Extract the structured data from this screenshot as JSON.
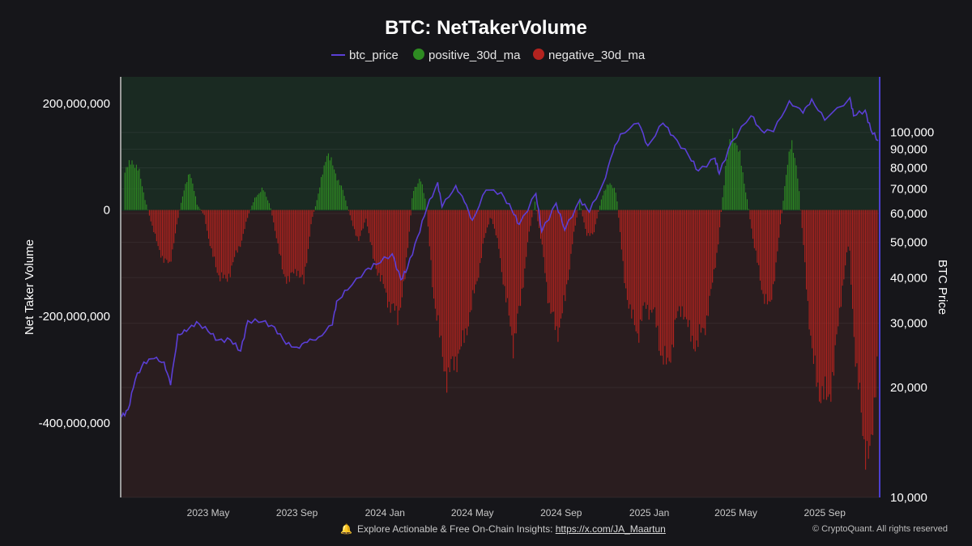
{
  "chart_data": {
    "type": "bar",
    "title": "BTC: NetTakerVolume",
    "legend": {
      "placement": "top-center",
      "entries": [
        {
          "name": "btc_price",
          "color": "#5b3fd6",
          "shape": "line"
        },
        {
          "name": "positive_30d_ma",
          "color": "#2e8b22",
          "shape": "dot"
        },
        {
          "name": "negative_30d_ma",
          "color": "#b3231f",
          "shape": "dot"
        }
      ]
    },
    "left_axis": {
      "label": "Net Taker Volume",
      "range": [
        -540000000,
        250000000
      ],
      "ticks": [
        {
          "value": 200000000,
          "label": "200,000,000"
        },
        {
          "value": 0,
          "label": "0"
        },
        {
          "value": -200000000,
          "label": "-200,000,000"
        },
        {
          "value": -400000000,
          "label": "-400,000,000"
        }
      ]
    },
    "right_axis": {
      "label": "BTC Price",
      "scale": "log",
      "range": [
        10000,
        142000
      ],
      "ticks": [
        {
          "value": 100000,
          "label": "100,000"
        },
        {
          "value": 90000,
          "label": "90,000"
        },
        {
          "value": 80000,
          "label": "80,000"
        },
        {
          "value": 70000,
          "label": "70,000"
        },
        {
          "value": 60000,
          "label": "60,000"
        },
        {
          "value": 50000,
          "label": "50,000"
        },
        {
          "value": 40000,
          "label": "40,000"
        },
        {
          "value": 30000,
          "label": "30,000"
        },
        {
          "value": 20000,
          "label": "20,000"
        },
        {
          "value": 10000,
          "label": "10,000"
        }
      ]
    },
    "x_axis": {
      "range": [
        "2023-01-01",
        "2025-11-15"
      ],
      "ticks": [
        {
          "date": "2023-05-01",
          "label": "2023 May"
        },
        {
          "date": "2023-09-01",
          "label": "2023 Sep"
        },
        {
          "date": "2024-01-01",
          "label": "2024 Jan"
        },
        {
          "date": "2024-05-01",
          "label": "2024 May"
        },
        {
          "date": "2024-09-01",
          "label": "2024 Sep"
        },
        {
          "date": "2025-01-01",
          "label": "2025 Jan"
        },
        {
          "date": "2025-05-01",
          "label": "2025 May"
        },
        {
          "date": "2025-09-01",
          "label": "2025 Sep"
        }
      ]
    },
    "grid": true,
    "series": [
      {
        "name": "net_taker_volume_30d_ma",
        "points": [
          [
            "2023-01-05",
            70000000
          ],
          [
            "2023-01-15",
            95000000
          ],
          [
            "2023-01-25",
            70000000
          ],
          [
            "2023-02-03",
            15000000
          ],
          [
            "2023-02-10",
            -20000000
          ],
          [
            "2023-02-20",
            -70000000
          ],
          [
            "2023-03-01",
            -95000000
          ],
          [
            "2023-03-08",
            -105000000
          ],
          [
            "2023-03-15",
            -50000000
          ],
          [
            "2023-03-25",
            20000000
          ],
          [
            "2023-04-05",
            75000000
          ],
          [
            "2023-04-15",
            10000000
          ],
          [
            "2023-04-25",
            -10000000
          ],
          [
            "2023-05-05",
            -80000000
          ],
          [
            "2023-05-15",
            -120000000
          ],
          [
            "2023-05-25",
            -135000000
          ],
          [
            "2023-06-05",
            -95000000
          ],
          [
            "2023-06-15",
            -60000000
          ],
          [
            "2023-06-25",
            -10000000
          ],
          [
            "2023-07-05",
            25000000
          ],
          [
            "2023-07-15",
            40000000
          ],
          [
            "2023-07-25",
            10000000
          ],
          [
            "2023-08-03",
            -50000000
          ],
          [
            "2023-08-12",
            -120000000
          ],
          [
            "2023-08-22",
            -130000000
          ],
          [
            "2023-09-01",
            -110000000
          ],
          [
            "2023-09-10",
            -140000000
          ],
          [
            "2023-09-20",
            -25000000
          ],
          [
            "2023-10-01",
            35000000
          ],
          [
            "2023-10-12",
            110000000
          ],
          [
            "2023-10-22",
            75000000
          ],
          [
            "2023-11-02",
            40000000
          ],
          [
            "2023-11-15",
            -20000000
          ],
          [
            "2023-11-25",
            -60000000
          ],
          [
            "2023-12-05",
            -15000000
          ],
          [
            "2023-12-15",
            -90000000
          ],
          [
            "2023-12-28",
            -140000000
          ],
          [
            "2024-01-08",
            -180000000
          ],
          [
            "2024-01-18",
            -200000000
          ],
          [
            "2024-01-28",
            -130000000
          ],
          [
            "2024-02-08",
            35000000
          ],
          [
            "2024-02-18",
            60000000
          ],
          [
            "2024-02-26",
            15000000
          ],
          [
            "2024-03-07",
            -150000000
          ],
          [
            "2024-03-17",
            -250000000
          ],
          [
            "2024-03-27",
            -320000000
          ],
          [
            "2024-04-06",
            -280000000
          ],
          [
            "2024-04-16",
            -260000000
          ],
          [
            "2024-04-26",
            -200000000
          ],
          [
            "2024-05-06",
            -140000000
          ],
          [
            "2024-05-16",
            -60000000
          ],
          [
            "2024-05-26",
            -10000000
          ],
          [
            "2024-06-06",
            -70000000
          ],
          [
            "2024-06-16",
            -170000000
          ],
          [
            "2024-06-26",
            -250000000
          ],
          [
            "2024-07-06",
            -180000000
          ],
          [
            "2024-07-16",
            -60000000
          ],
          [
            "2024-07-26",
            15000000
          ],
          [
            "2024-08-06",
            -80000000
          ],
          [
            "2024-08-16",
            -190000000
          ],
          [
            "2024-08-26",
            -230000000
          ],
          [
            "2024-09-06",
            -170000000
          ],
          [
            "2024-09-16",
            -60000000
          ],
          [
            "2024-09-26",
            15000000
          ],
          [
            "2024-10-06",
            -50000000
          ],
          [
            "2024-10-16",
            -40000000
          ],
          [
            "2024-10-26",
            20000000
          ],
          [
            "2024-11-06",
            55000000
          ],
          [
            "2024-11-16",
            30000000
          ],
          [
            "2024-11-26",
            -120000000
          ],
          [
            "2024-12-06",
            -200000000
          ],
          [
            "2024-12-16",
            -230000000
          ],
          [
            "2024-12-26",
            -180000000
          ],
          [
            "2025-01-06",
            -190000000
          ],
          [
            "2025-01-16",
            -260000000
          ],
          [
            "2025-01-26",
            -300000000
          ],
          [
            "2025-02-06",
            -210000000
          ],
          [
            "2025-02-16",
            -180000000
          ],
          [
            "2025-02-26",
            -240000000
          ],
          [
            "2025-03-08",
            -250000000
          ],
          [
            "2025-03-18",
            -220000000
          ],
          [
            "2025-03-28",
            -150000000
          ],
          [
            "2025-04-06",
            -60000000
          ],
          [
            "2025-04-16",
            80000000
          ],
          [
            "2025-04-26",
            150000000
          ],
          [
            "2025-05-06",
            100000000
          ],
          [
            "2025-05-16",
            20000000
          ],
          [
            "2025-05-26",
            -70000000
          ],
          [
            "2025-06-06",
            -150000000
          ],
          [
            "2025-06-16",
            -190000000
          ],
          [
            "2025-06-26",
            -90000000
          ],
          [
            "2025-07-06",
            30000000
          ],
          [
            "2025-07-16",
            140000000
          ],
          [
            "2025-07-26",
            50000000
          ],
          [
            "2025-08-05",
            -120000000
          ],
          [
            "2025-08-15",
            -290000000
          ],
          [
            "2025-08-25",
            -340000000
          ],
          [
            "2025-09-04",
            -360000000
          ],
          [
            "2025-09-14",
            -290000000
          ],
          [
            "2025-09-24",
            -150000000
          ],
          [
            "2025-10-04",
            -60000000
          ],
          [
            "2025-10-14",
            -300000000
          ],
          [
            "2025-10-24",
            -420000000
          ],
          [
            "2025-11-03",
            -480000000
          ],
          [
            "2025-11-12",
            -270000000
          ]
        ]
      },
      {
        "name": "btc_price",
        "points": [
          [
            "2023-01-01",
            16600
          ],
          [
            "2023-01-10",
            17400
          ],
          [
            "2023-01-20",
            21000
          ],
          [
            "2023-02-01",
            23500
          ],
          [
            "2023-02-15",
            24000
          ],
          [
            "2023-03-01",
            23500
          ],
          [
            "2023-03-10",
            20300
          ],
          [
            "2023-03-20",
            28000
          ],
          [
            "2023-04-01",
            28500
          ],
          [
            "2023-04-15",
            30300
          ],
          [
            "2023-05-01",
            28500
          ],
          [
            "2023-05-15",
            27000
          ],
          [
            "2023-06-01",
            27000
          ],
          [
            "2023-06-15",
            25200
          ],
          [
            "2023-06-25",
            30500
          ],
          [
            "2023-07-15",
            30300
          ],
          [
            "2023-08-01",
            29300
          ],
          [
            "2023-08-17",
            26300
          ],
          [
            "2023-09-01",
            25800
          ],
          [
            "2023-09-15",
            26600
          ],
          [
            "2023-10-01",
            27500
          ],
          [
            "2023-10-20",
            29700
          ],
          [
            "2023-10-26",
            34500
          ],
          [
            "2023-11-10",
            37000
          ],
          [
            "2023-12-05",
            42000
          ],
          [
            "2023-12-20",
            43500
          ],
          [
            "2024-01-11",
            46500
          ],
          [
            "2024-01-23",
            39500
          ],
          [
            "2024-02-01",
            42500
          ],
          [
            "2024-02-15",
            51700
          ],
          [
            "2024-02-28",
            62000
          ],
          [
            "2024-03-14",
            73000
          ],
          [
            "2024-03-20",
            62500
          ],
          [
            "2024-04-08",
            71500
          ],
          [
            "2024-04-20",
            64500
          ],
          [
            "2024-05-01",
            57500
          ],
          [
            "2024-05-20",
            69500
          ],
          [
            "2024-06-10",
            68500
          ],
          [
            "2024-06-25",
            61000
          ],
          [
            "2024-07-05",
            56000
          ],
          [
            "2024-07-28",
            68000
          ],
          [
            "2024-08-05",
            53500
          ],
          [
            "2024-08-25",
            64000
          ],
          [
            "2024-09-06",
            54000
          ],
          [
            "2024-09-27",
            65500
          ],
          [
            "2024-10-10",
            60500
          ],
          [
            "2024-10-29",
            72500
          ],
          [
            "2024-11-12",
            88500
          ],
          [
            "2024-11-22",
            99000
          ],
          [
            "2024-12-17",
            106000
          ],
          [
            "2024-12-30",
            92000
          ],
          [
            "2025-01-20",
            106000
          ],
          [
            "2025-02-03",
            98000
          ],
          [
            "2025-02-25",
            86000
          ],
          [
            "2025-03-10",
            78500
          ],
          [
            "2025-04-02",
            85000
          ],
          [
            "2025-04-08",
            77000
          ],
          [
            "2025-04-25",
            94500
          ],
          [
            "2025-05-22",
            111000
          ],
          [
            "2025-06-05",
            101500
          ],
          [
            "2025-06-22",
            100500
          ],
          [
            "2025-07-14",
            122000
          ],
          [
            "2025-08-02",
            113000
          ],
          [
            "2025-08-14",
            123500
          ],
          [
            "2025-09-01",
            108000
          ],
          [
            "2025-10-06",
            124500
          ],
          [
            "2025-10-11",
            111000
          ],
          [
            "2025-10-27",
            115000
          ],
          [
            "2025-11-04",
            101500
          ],
          [
            "2025-11-14",
            95000
          ]
        ]
      }
    ]
  },
  "footer": {
    "bell_icon": "bell-icon",
    "text": "Explore Actionable & Free On-Chain Insights: ",
    "link": "https://x.com/JA_Maartun",
    "copyright": "© CryptoQuant. All rights reserved"
  }
}
